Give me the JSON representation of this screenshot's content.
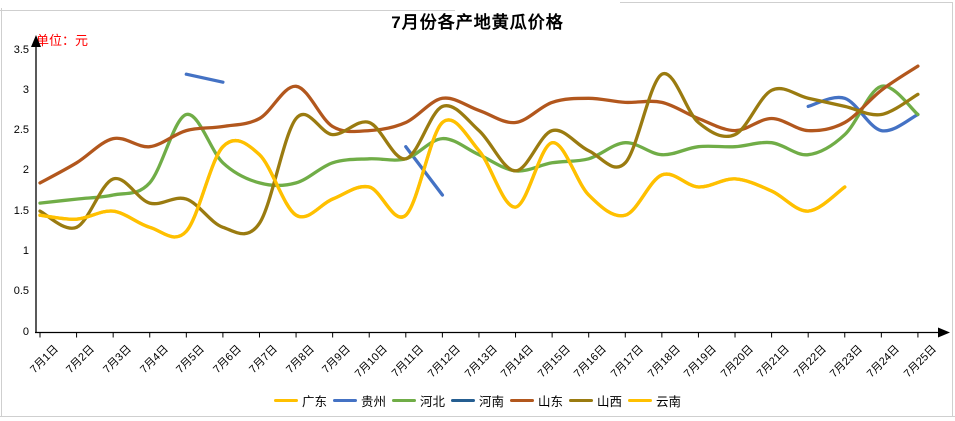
{
  "chart_data": {
    "type": "line",
    "title": "7月份各产地黄瓜价格",
    "unit_label": "单位：元",
    "unit_label_color": "#FF0000",
    "smooth": true,
    "grid": false,
    "legend_position": "bottom",
    "ylim": [
      0,
      3.5
    ],
    "y_ticks": [
      "0",
      "0.5",
      "1",
      "1.5",
      "2",
      "2.5",
      "3",
      "3.5"
    ],
    "categories": [
      "7月1日",
      "7月2日",
      "7月3日",
      "7月4日",
      "7月5日",
      "7月6日",
      "7月7日",
      "7月8日",
      "7月9日",
      "7月10日",
      "7月11日",
      "7月12日",
      "7月13日",
      "7月14日",
      "7月15日",
      "7月16日",
      "7月17日",
      "7月18日",
      "7月19日",
      "7月20日",
      "7月21日",
      "7月22日",
      "7月23日",
      "7月24日",
      "7月25日"
    ],
    "series": [
      {
        "id": "guangdong",
        "name": "广东",
        "color": "#FFC000",
        "values": [
          1.45,
          1.4,
          1.5,
          1.3,
          1.25,
          2.3,
          2.2,
          1.45,
          1.65,
          1.8,
          1.45,
          2.6,
          2.25,
          1.55,
          2.35,
          1.7,
          1.45,
          1.95,
          1.8,
          1.9,
          1.75,
          1.5,
          1.8,
          null,
          null
        ]
      },
      {
        "id": "guizhou",
        "name": "贵州",
        "color": "#4472C4",
        "values": [
          null,
          null,
          null,
          null,
          3.2,
          3.1,
          null,
          null,
          null,
          null,
          2.3,
          1.7,
          null,
          null,
          null,
          null,
          null,
          null,
          null,
          null,
          null,
          2.8,
          2.9,
          2.5,
          2.7
        ]
      },
      {
        "id": "hebei",
        "name": "河北",
        "color": "#70AD47",
        "values": [
          1.6,
          1.65,
          1.7,
          1.85,
          2.7,
          2.1,
          1.85,
          1.85,
          2.1,
          2.15,
          2.15,
          2.4,
          2.2,
          2.0,
          2.1,
          2.15,
          2.35,
          2.2,
          2.3,
          2.3,
          2.35,
          2.2,
          2.45,
          3.05,
          2.7
        ]
      },
      {
        "id": "henan",
        "name": "河南",
        "color": "#255E91",
        "values": [
          null,
          null,
          null,
          null,
          null,
          null,
          null,
          null,
          null,
          null,
          null,
          null,
          null,
          null,
          null,
          null,
          null,
          null,
          null,
          null,
          null,
          null,
          null,
          null,
          null
        ]
      },
      {
        "id": "shandong",
        "name": "山东",
        "color": "#B2571D",
        "values": [
          1.85,
          2.1,
          2.4,
          2.3,
          2.5,
          2.55,
          2.65,
          3.05,
          2.55,
          2.5,
          2.6,
          2.9,
          2.75,
          2.6,
          2.85,
          2.9,
          2.85,
          2.85,
          2.65,
          2.5,
          2.65,
          2.5,
          2.6,
          3.0,
          3.3
        ]
      },
      {
        "id": "shanxi",
        "name": "山西",
        "color": "#9A7B10",
        "values": [
          1.5,
          1.3,
          1.9,
          1.6,
          1.65,
          1.3,
          1.35,
          2.65,
          2.45,
          2.6,
          2.15,
          2.8,
          2.5,
          2.0,
          2.5,
          2.25,
          2.1,
          3.2,
          2.6,
          2.45,
          3.0,
          2.9,
          2.8,
          2.7,
          2.95
        ]
      },
      {
        "id": "yunnan",
        "name": "云南",
        "color": "#FFC000",
        "values": [
          1.45,
          1.4,
          1.5,
          1.3,
          1.25,
          2.3,
          2.2,
          1.45,
          1.65,
          1.8,
          1.45,
          2.6,
          2.25,
          1.55,
          2.35,
          1.7,
          1.45,
          1.95,
          1.8,
          1.9,
          1.75,
          1.5,
          1.8,
          null,
          null
        ]
      }
    ]
  }
}
